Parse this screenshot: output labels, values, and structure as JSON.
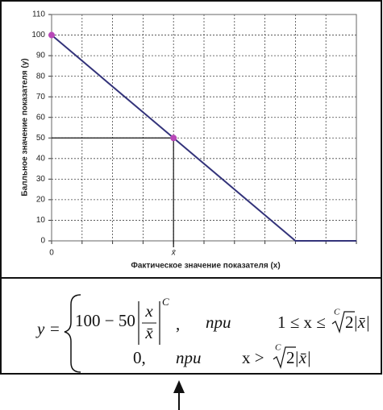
{
  "chart_data": {
    "type": "line",
    "ylabel": "Балльное значение показателя (у)",
    "xlabel": "Фактическое значение показателя (x)",
    "xlim": [
      0,
      10
    ],
    "ylim": [
      0,
      110
    ],
    "yticks": [
      0,
      10,
      20,
      30,
      40,
      50,
      60,
      70,
      80,
      90,
      100,
      110
    ],
    "xticks": [
      0,
      {
        "value": 1,
        "label": null
      },
      {
        "value": 2,
        "label": null
      },
      {
        "value": 3,
        "label": null
      },
      {
        "value": 4,
        "label": "x̄"
      },
      {
        "value": 5,
        "label": null
      },
      {
        "value": 6,
        "label": null
      },
      {
        "value": 7,
        "label": null
      },
      {
        "value": 8,
        "label": null
      },
      {
        "value": 9,
        "label": null
      },
      {
        "value": 10,
        "label": null
      }
    ],
    "grid": true,
    "series": [
      {
        "color": "#33337a",
        "x": [
          0,
          4,
          8,
          10
        ],
        "values": [
          100,
          50,
          0,
          0
        ]
      }
    ],
    "markers": {
      "color": "#b848b8",
      "x": [
        0,
        4
      ],
      "values": [
        100,
        50
      ]
    }
  },
  "formula": {
    "lhs": "y =",
    "row1": {
      "expr": "100 − 50",
      "num": "x",
      "den": "x̄",
      "power": "C",
      "comma": ",",
      "word": "при",
      "cond": "1 ≤ x ≤",
      "root_index": "C",
      "radicand": "2",
      "abs": "|x̄|"
    },
    "row2": {
      "expr": "0,",
      "word": "при",
      "cond": "x >",
      "root_index": "C",
      "radicand": "2",
      "abs": "|x̄|"
    }
  }
}
